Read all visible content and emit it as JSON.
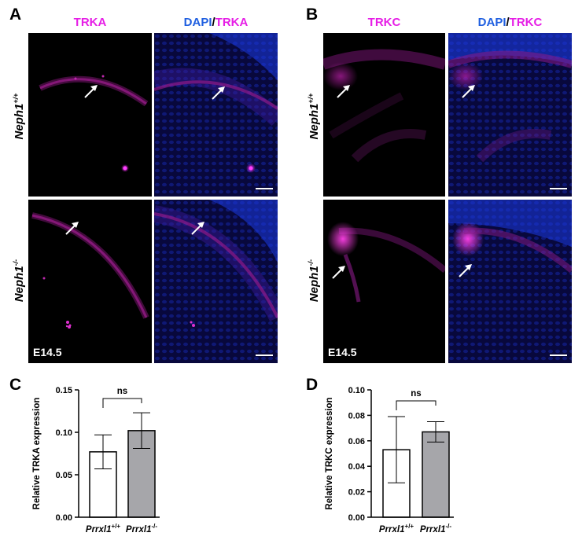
{
  "panels": {
    "A": {
      "letter": "A",
      "title_left": "TRKA",
      "title_right_prefix": "DAPI",
      "title_right_sep": "/",
      "title_right_marker": "TRKA"
    },
    "B": {
      "letter": "B",
      "title_left": "TRKC",
      "title_right_prefix": "DAPI",
      "title_right_sep": "/",
      "title_right_marker": "TRKC"
    },
    "C": {
      "letter": "C"
    },
    "D": {
      "letter": "D"
    }
  },
  "rows": {
    "top": {
      "gene": "Neph1",
      "genotype": "+/+"
    },
    "bottom": {
      "gene": "Neph1",
      "genotype": "-/-"
    }
  },
  "stage_label": "E14.5",
  "colors": {
    "magenta": "#e61ee6",
    "blue": "#1f5fe0",
    "gray_bar": "#a6a6aa"
  },
  "chart_data": [
    {
      "type": "bar",
      "panel": "C",
      "categories": [
        {
          "gene": "Prrxl1",
          "genotype": "+/+"
        },
        {
          "gene": "Prrxl1",
          "genotype": "-/-"
        }
      ],
      "values": [
        0.077,
        0.102
      ],
      "error": [
        0.02,
        0.021
      ],
      "bar_colors": [
        "#ffffff",
        "#a6a6aa"
      ],
      "ylabel": "Relative TRKA expression",
      "ylim": [
        0,
        0.15
      ],
      "yticks": [
        "0.00",
        "0.05",
        "0.10",
        "0.15"
      ],
      "ytick_values": [
        0,
        0.05,
        0.1,
        0.15
      ],
      "significance": "ns"
    },
    {
      "type": "bar",
      "panel": "D",
      "categories": [
        {
          "gene": "Prrxl1",
          "genotype": "+/+"
        },
        {
          "gene": "Prrxl1",
          "genotype": "-/-"
        }
      ],
      "values": [
        0.053,
        0.067
      ],
      "error": [
        0.026,
        0.008
      ],
      "bar_colors": [
        "#ffffff",
        "#a6a6aa"
      ],
      "ylabel": "Relative TRKC expression",
      "ylim": [
        0,
        0.1
      ],
      "yticks": [
        "0.00",
        "0.02",
        "0.04",
        "0.06",
        "0.08",
        "0.10"
      ],
      "ytick_values": [
        0,
        0.02,
        0.04,
        0.06,
        0.08,
        0.1
      ],
      "significance": "ns"
    }
  ]
}
